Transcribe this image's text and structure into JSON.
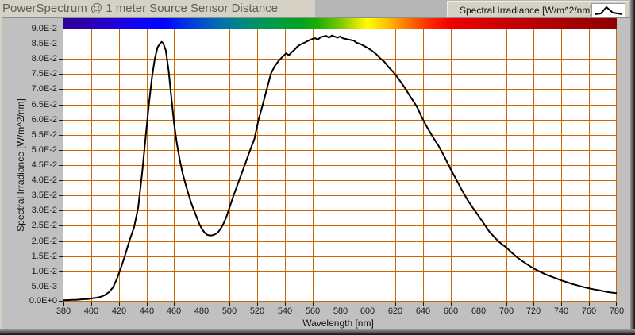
{
  "window": {
    "title": "PowerSpectrum @ 1 meter Source Sensor Distance"
  },
  "legend": {
    "label": "Spectral Irradiance [W/m^2/nm]",
    "glyph_icon": "curve-peak-icon"
  },
  "chart_data": {
    "type": "line",
    "title": "PowerSpectrum @ 1 meter Source Sensor Distance",
    "xlabel": "Wavelength [nm]",
    "ylabel": "Spectral Irradiance [W/m^2/nm]",
    "xlim": [
      380,
      780
    ],
    "ylim": [
      0,
      0.09
    ],
    "grid": true,
    "legend_position": "top-right",
    "gridline_color": "#cc6600",
    "line_color": "#000000",
    "plot_background": "#ffffff",
    "x_ticks": [
      380,
      400,
      420,
      440,
      460,
      480,
      500,
      520,
      540,
      560,
      580,
      600,
      620,
      640,
      660,
      680,
      700,
      720,
      740,
      760,
      780
    ],
    "y_tick_values": [
      0,
      0.005,
      0.01,
      0.015,
      0.02,
      0.025,
      0.03,
      0.035,
      0.04,
      0.045,
      0.05,
      0.055,
      0.06,
      0.065,
      0.07,
      0.075,
      0.08,
      0.085,
      0.09
    ],
    "y_tick_labels": [
      "0.0E+0",
      "5.0E-3",
      "1.0E-2",
      "1.5E-2",
      "2.0E-2",
      "2.5E-2",
      "3.0E-2",
      "3.5E-2",
      "4.0E-2",
      "4.5E-2",
      "5.0E-2",
      "5.5E-2",
      "6.0E-2",
      "6.5E-2",
      "7.0E-2",
      "7.5E-2",
      "8.0E-2",
      "8.5E-2",
      "9.0E-2"
    ],
    "series": [
      {
        "name": "Spectral Irradiance [W/m^2/nm]",
        "x": [
          380,
          383,
          386,
          389,
          392,
          395,
          398,
          401,
          404,
          407,
          410,
          413,
          416,
          419,
          422,
          425,
          428,
          431,
          434,
          437,
          440,
          442,
          444,
          446,
          448,
          450,
          451,
          452,
          454,
          456,
          458,
          460,
          462,
          464,
          466,
          468,
          470,
          472,
          474,
          476,
          478,
          480,
          482,
          484,
          486,
          488,
          490,
          492,
          494,
          496,
          498,
          500,
          503,
          506,
          509,
          512,
          515,
          518,
          521,
          524,
          527,
          530,
          533,
          536,
          539,
          541,
          543,
          545,
          547,
          549,
          551,
          554,
          557,
          560,
          562,
          564,
          566,
          568,
          570,
          572,
          574,
          576,
          578,
          580,
          582,
          584,
          586,
          588,
          590,
          592,
          594,
          596,
          598,
          600,
          603,
          606,
          609,
          612,
          615,
          618,
          621,
          624,
          627,
          630,
          633,
          636,
          639,
          642,
          645,
          648,
          651,
          654,
          657,
          660,
          664,
          668,
          672,
          676,
          680,
          684,
          688,
          692,
          696,
          700,
          704,
          708,
          712,
          716,
          720,
          724,
          728,
          732,
          736,
          740,
          744,
          748,
          752,
          756,
          760,
          764,
          768,
          772,
          776,
          780
        ],
        "y": [
          0.0005,
          0.0005,
          0.0006,
          0.0006,
          0.0007,
          0.0008,
          0.0009,
          0.0011,
          0.0013,
          0.0016,
          0.0022,
          0.0032,
          0.0048,
          0.008,
          0.0118,
          0.016,
          0.0205,
          0.0245,
          0.031,
          0.043,
          0.057,
          0.066,
          0.074,
          0.08,
          0.0838,
          0.0852,
          0.0856,
          0.0852,
          0.0828,
          0.0762,
          0.0672,
          0.0585,
          0.052,
          0.0468,
          0.0425,
          0.0392,
          0.036,
          0.033,
          0.0305,
          0.0282,
          0.0258,
          0.024,
          0.0228,
          0.022,
          0.0218,
          0.0219,
          0.0223,
          0.023,
          0.0243,
          0.026,
          0.0282,
          0.031,
          0.035,
          0.0388,
          0.0425,
          0.0462,
          0.05,
          0.0536,
          0.06,
          0.0648,
          0.07,
          0.0752,
          0.0778,
          0.0796,
          0.081,
          0.0818,
          0.0812,
          0.0822,
          0.083,
          0.084,
          0.0847,
          0.0853,
          0.086,
          0.0866,
          0.0868,
          0.0864,
          0.0872,
          0.0874,
          0.0876,
          0.087,
          0.0877,
          0.0874,
          0.087,
          0.0874,
          0.0868,
          0.0866,
          0.0864,
          0.0862,
          0.086,
          0.0853,
          0.085,
          0.0846,
          0.0841,
          0.0836,
          0.0827,
          0.0816,
          0.0802,
          0.079,
          0.0773,
          0.0759,
          0.0742,
          0.0723,
          0.0703,
          0.0681,
          0.066,
          0.0638,
          0.0608,
          0.0582,
          0.0558,
          0.0536,
          0.0515,
          0.049,
          0.0463,
          0.0436,
          0.0402,
          0.0368,
          0.0336,
          0.0309,
          0.0283,
          0.0257,
          0.023,
          0.021,
          0.0193,
          0.0179,
          0.0162,
          0.0146,
          0.0133,
          0.0121,
          0.0109,
          0.01,
          0.0091,
          0.0084,
          0.0077,
          0.007,
          0.0064,
          0.0058,
          0.0053,
          0.0048,
          0.0044,
          0.004,
          0.0037,
          0.0033,
          0.003,
          0.0028
        ]
      }
    ],
    "spectrum_bar_stops": [
      {
        "pos": 0,
        "color": "#2f0096"
      },
      {
        "pos": 5,
        "color": "#2a00b4"
      },
      {
        "pos": 10,
        "color": "#1e00e1"
      },
      {
        "pos": 15,
        "color": "#0a06fa"
      },
      {
        "pos": 18,
        "color": "#0000ff"
      },
      {
        "pos": 23,
        "color": "#003cdc"
      },
      {
        "pos": 28,
        "color": "#006eb4"
      },
      {
        "pos": 33,
        "color": "#008c78"
      },
      {
        "pos": 38,
        "color": "#009b46"
      },
      {
        "pos": 43,
        "color": "#00a51e"
      },
      {
        "pos": 46,
        "color": "#1eaf00"
      },
      {
        "pos": 50,
        "color": "#78c800"
      },
      {
        "pos": 53,
        "color": "#d7e600"
      },
      {
        "pos": 55,
        "color": "#ffff00"
      },
      {
        "pos": 58,
        "color": "#ffc800"
      },
      {
        "pos": 61,
        "color": "#ff8c00"
      },
      {
        "pos": 64,
        "color": "#ff5000"
      },
      {
        "pos": 67,
        "color": "#ff1e00"
      },
      {
        "pos": 70,
        "color": "#f00000"
      },
      {
        "pos": 75,
        "color": "#dc0000"
      },
      {
        "pos": 82,
        "color": "#c30000"
      },
      {
        "pos": 90,
        "color": "#ab0000"
      },
      {
        "pos": 100,
        "color": "#8c0000"
      }
    ]
  }
}
